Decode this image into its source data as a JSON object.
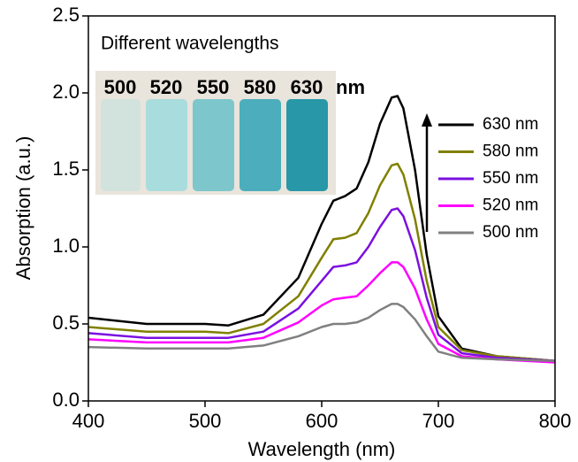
{
  "chart_data": {
    "type": "line",
    "x_label": "Wavelength (nm)",
    "y_label": "Absorption (a.u.)",
    "x": [
      400,
      450,
      500,
      520,
      550,
      580,
      600,
      610,
      620,
      630,
      640,
      650,
      660,
      665,
      670,
      680,
      690,
      700,
      720,
      750,
      800
    ],
    "series": [
      {
        "name": "630 nm",
        "color": "#000000",
        "values": [
          0.54,
          0.5,
          0.5,
          0.49,
          0.56,
          0.8,
          1.15,
          1.3,
          1.33,
          1.38,
          1.55,
          1.8,
          1.97,
          1.98,
          1.9,
          1.5,
          0.95,
          0.55,
          0.34,
          0.29,
          0.26
        ]
      },
      {
        "name": "580 nm",
        "color": "#808000",
        "values": [
          0.48,
          0.45,
          0.45,
          0.44,
          0.5,
          0.68,
          0.93,
          1.05,
          1.06,
          1.09,
          1.22,
          1.4,
          1.53,
          1.54,
          1.47,
          1.18,
          0.78,
          0.48,
          0.33,
          0.29,
          0.26
        ]
      },
      {
        "name": "550 nm",
        "color": "#7b10e0",
        "values": [
          0.44,
          0.41,
          0.41,
          0.41,
          0.45,
          0.6,
          0.78,
          0.87,
          0.88,
          0.9,
          1.0,
          1.13,
          1.24,
          1.25,
          1.2,
          0.98,
          0.67,
          0.43,
          0.31,
          0.28,
          0.26
        ]
      },
      {
        "name": "520 nm",
        "color": "#ff00ff",
        "values": [
          0.4,
          0.38,
          0.38,
          0.38,
          0.41,
          0.51,
          0.62,
          0.66,
          0.67,
          0.68,
          0.75,
          0.83,
          0.9,
          0.9,
          0.87,
          0.73,
          0.53,
          0.37,
          0.29,
          0.27,
          0.25
        ]
      },
      {
        "name": "500 nm",
        "color": "#808080",
        "values": [
          0.35,
          0.34,
          0.34,
          0.34,
          0.36,
          0.42,
          0.48,
          0.5,
          0.5,
          0.51,
          0.54,
          0.59,
          0.63,
          0.63,
          0.61,
          0.53,
          0.42,
          0.32,
          0.28,
          0.27,
          0.26
        ]
      }
    ],
    "xlim": [
      400,
      800
    ],
    "xticks": [
      400,
      500,
      600,
      700,
      800
    ],
    "ylim": [
      0,
      2.5
    ],
    "yticks": [
      {
        "value": 0,
        "label": "0.0"
      },
      {
        "value": 0.5,
        "label": "0.5"
      },
      {
        "value": 1,
        "label": "1.0"
      },
      {
        "value": 1.5,
        "label": "1.5"
      },
      {
        "value": 2,
        "label": "2.0"
      },
      {
        "value": 2.5,
        "label": "2.5"
      }
    ],
    "inset": {
      "title": "Different wavelengths",
      "labels": [
        "500",
        "520",
        "550",
        "580",
        "630"
      ],
      "unit": "nm"
    }
  }
}
